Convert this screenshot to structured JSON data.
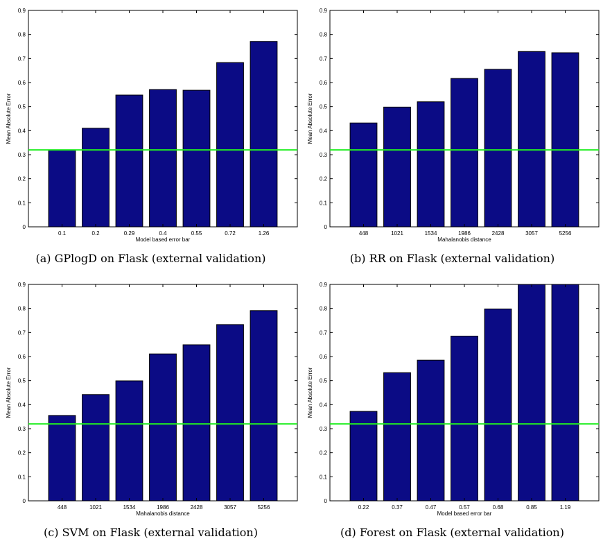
{
  "chart_data": [
    {
      "type": "bar",
      "categories": [
        "0.1",
        "0.2",
        "0.29",
        "0.4",
        "0.55",
        "0.72",
        "1.26"
      ],
      "values": [
        0.32,
        0.41,
        0.548,
        0.571,
        0.568,
        0.683,
        0.771
      ],
      "xlabel": "Model based error bar",
      "ylabel": "Mean Absolute Error",
      "ylim": [
        0,
        0.9
      ],
      "yticks": [
        "0",
        "0.1",
        "0.2",
        "0.3",
        "0.4",
        "0.5",
        "0.6",
        "0.7",
        "0.8",
        "0.9"
      ],
      "reference_line": 0.32,
      "caption": "(a) GPlogD on Flask (external validation)"
    },
    {
      "type": "bar",
      "categories": [
        "448",
        "1021",
        "1534",
        "1986",
        "2428",
        "3057",
        "5256"
      ],
      "values": [
        0.432,
        0.498,
        0.52,
        0.617,
        0.655,
        0.729,
        0.724
      ],
      "xlabel": "Mahalanobis distance",
      "ylabel": "Mean Absolute Error",
      "ylim": [
        0,
        0.9
      ],
      "yticks": [
        "0",
        "0.1",
        "0.2",
        "0.3",
        "0.4",
        "0.5",
        "0.6",
        "0.7",
        "0.8",
        "0.9"
      ],
      "reference_line": 0.32,
      "caption": "(b) RR on Flask (external validation)"
    },
    {
      "type": "bar",
      "categories": [
        "448",
        "1021",
        "1534",
        "1986",
        "2428",
        "3057",
        "5256"
      ],
      "values": [
        0.355,
        0.442,
        0.499,
        0.611,
        0.649,
        0.733,
        0.791
      ],
      "xlabel": "Mahalanobis distance",
      "ylabel": "Mean Absolute Error",
      "ylim": [
        0,
        0.9
      ],
      "yticks": [
        "0",
        "0.1",
        "0.2",
        "0.3",
        "0.4",
        "0.5",
        "0.6",
        "0.7",
        "0.8",
        "0.9"
      ],
      "reference_line": 0.32,
      "caption": "(c) SVM on Flask (external validation)"
    },
    {
      "type": "bar",
      "categories": [
        "0.22",
        "0.37",
        "0.47",
        "0.57",
        "0.68",
        "0.85",
        "1.19"
      ],
      "values": [
        0.372,
        0.533,
        0.585,
        0.685,
        0.798,
        0.9,
        0.9
      ],
      "xlabel": "Model based error bar",
      "ylabel": "Mean Absolute Error",
      "ylim": [
        0,
        0.9
      ],
      "yticks": [
        "0",
        "0.1",
        "0.2",
        "0.3",
        "0.4",
        "0.5",
        "0.6",
        "0.7",
        "0.8",
        "0.9"
      ],
      "reference_line": 0.32,
      "caption": "(d) Forest on Flask (external validation)"
    }
  ],
  "colors": {
    "bar_fill": "#0b0b85",
    "bar_stroke": "#000000",
    "reference_line": "#22ee22"
  }
}
